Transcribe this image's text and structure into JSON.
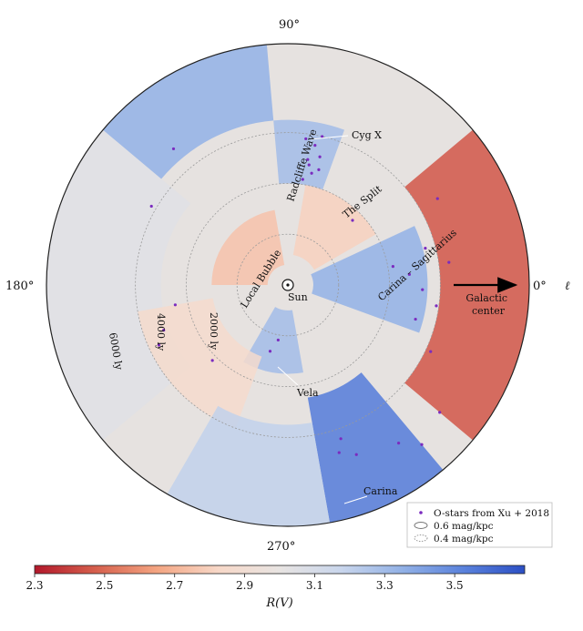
{
  "chart_data": {
    "type": "heatmap",
    "projection": "polar (Galactic plane, Sun at center)",
    "longitude_labels": [
      {
        "text": "90°",
        "l": 90
      },
      {
        "text": "180°",
        "l": 180
      },
      {
        "text": "270°",
        "l": 270
      },
      {
        "text": "0°",
        "l": 0
      }
    ],
    "axis_symbol": "ℓ",
    "distance_rings": [
      {
        "text": "2000 ly",
        "r_ly": 2000
      },
      {
        "text": "4000 ly",
        "r_ly": 4000
      },
      {
        "text": "6000 ly",
        "r_ly": 6000
      }
    ],
    "max_radius_ly": 9500,
    "features": [
      {
        "text": "Cyg X",
        "l": 78,
        "r_ly": 4400
      },
      {
        "text": "Radcliffe Wave",
        "l": 96,
        "r_ly": 2900
      },
      {
        "text": "The Split",
        "l": 52,
        "r_ly": 2700
      },
      {
        "text": "Carina – Sagittarius",
        "l": 18,
        "r_ly": 3300
      },
      {
        "text": "Local Bubble",
        "l": 140,
        "r_ly": 550
      },
      {
        "text": "Sun",
        "l": 0,
        "r_ly": 0
      },
      {
        "text": "Vela",
        "l": 265,
        "r_ly": 2900
      },
      {
        "text": "Carina",
        "l": 291,
        "r_ly": 6200
      }
    ],
    "galactic_center_label": "Galactic\ncenter",
    "colorbar": {
      "label": "R(V)",
      "min": 2.3,
      "max": 3.7,
      "ticks": [
        2.3,
        2.5,
        2.7,
        2.9,
        3.1,
        3.3,
        3.5
      ],
      "tick_labels": [
        "2.3",
        "2.5",
        "2.7",
        "2.9",
        "3.1",
        "3.3",
        "3.5"
      ],
      "colormap": [
        "#b2182b",
        "#d6604d",
        "#f4a582",
        "#f7d8c8",
        "#e8e4e2",
        "#c9d6ec",
        "#92b1e6",
        "#5a82dc",
        "#2c4fc4"
      ]
    },
    "legend": {
      "placement": "bottom-right",
      "entries": [
        {
          "text": "O-stars from Xu + 2018",
          "marker": "dot",
          "color": "#7b2cbf"
        },
        {
          "text": "0.6 mag/kpc",
          "marker": "solid-contour",
          "color": "#777777"
        },
        {
          "text": "0.4 mag/kpc",
          "marker": "dotted-contour",
          "color": "#999999"
        }
      ]
    },
    "regions": [
      {
        "name": "inner-galaxy-toward-center",
        "l_from": -40,
        "l_to": 40,
        "r_from_ly": 6000,
        "r_to_ly": 9500,
        "rv": 2.45
      },
      {
        "name": "anticenter-outer",
        "l_from": 140,
        "l_to": 220,
        "r_from_ly": 5000,
        "r_to_ly": 9500,
        "rv": 3.05
      },
      {
        "name": "radcliffe-region",
        "l_from": 100,
        "l_to": 180,
        "r_from_ly": 800,
        "r_to_ly": 3000,
        "rv": 2.75
      },
      {
        "name": "split-region",
        "l_from": 30,
        "l_to": 80,
        "r_from_ly": 1200,
        "r_to_ly": 4000,
        "rv": 2.8
      },
      {
        "name": "carina-sagittarius",
        "l_from": -20,
        "l_to": 25,
        "r_from_ly": 1000,
        "r_to_ly": 5500,
        "rv": 3.35
      },
      {
        "name": "cygnus-x",
        "l_from": 70,
        "l_to": 95,
        "r_from_ly": 4000,
        "r_to_ly": 6500,
        "rv": 3.3
      },
      {
        "name": "outer-north",
        "l_from": 95,
        "l_to": 140,
        "r_from_ly": 6500,
        "r_to_ly": 9500,
        "rv": 3.35
      },
      {
        "name": "vela-region",
        "l_from": 240,
        "l_to": 280,
        "r_from_ly": 1000,
        "r_to_ly": 3500,
        "rv": 3.3
      },
      {
        "name": "carina-arm",
        "l_from": 280,
        "l_to": 310,
        "r_from_ly": 4500,
        "r_to_ly": 9500,
        "rv": 3.55
      },
      {
        "name": "southwest-field",
        "l_from": 190,
        "l_to": 250,
        "r_from_ly": 3000,
        "r_to_ly": 6000,
        "rv": 2.85
      },
      {
        "name": "south-far",
        "l_from": 240,
        "l_to": 280,
        "r_from_ly": 5500,
        "r_to_ly": 9500,
        "rv": 3.2
      }
    ],
    "o_stars": [
      {
        "l": 78,
        "r_ly": 4500
      },
      {
        "l": 80,
        "r_ly": 4800
      },
      {
        "l": 76,
        "r_ly": 5200
      },
      {
        "l": 79,
        "r_ly": 5600
      },
      {
        "l": 82,
        "r_ly": 4200
      },
      {
        "l": 77,
        "r_ly": 6000
      },
      {
        "l": 81,
        "r_ly": 5000
      },
      {
        "l": 75,
        "r_ly": 4700
      },
      {
        "l": 83,
        "r_ly": 5800
      },
      {
        "l": 10,
        "r_ly": 4200
      },
      {
        "l": 5,
        "r_ly": 4800
      },
      {
        "l": -2,
        "r_ly": 5300
      },
      {
        "l": 15,
        "r_ly": 5600
      },
      {
        "l": -8,
        "r_ly": 5900
      },
      {
        "l": 8,
        "r_ly": 6400
      },
      {
        "l": 289,
        "r_ly": 6400
      },
      {
        "l": 287,
        "r_ly": 6900
      },
      {
        "l": 292,
        "r_ly": 7200
      },
      {
        "l": 305,
        "r_ly": 7600
      },
      {
        "l": 310,
        "r_ly": 8200
      },
      {
        "l": 320,
        "r_ly": 7800
      },
      {
        "l": 200,
        "r_ly": 5200
      },
      {
        "l": 205,
        "r_ly": 5600
      },
      {
        "l": 190,
        "r_ly": 4500
      },
      {
        "l": 150,
        "r_ly": 6200
      },
      {
        "l": 130,
        "r_ly": 7000
      },
      {
        "l": 260,
        "r_ly": 2200
      },
      {
        "l": 255,
        "r_ly": 2700
      },
      {
        "l": 225,
        "r_ly": 4200
      },
      {
        "l": 45,
        "r_ly": 3600
      },
      {
        "l": 30,
        "r_ly": 6800
      },
      {
        "l": 335,
        "r_ly": 6200
      },
      {
        "l": 345,
        "r_ly": 5200
      }
    ]
  }
}
